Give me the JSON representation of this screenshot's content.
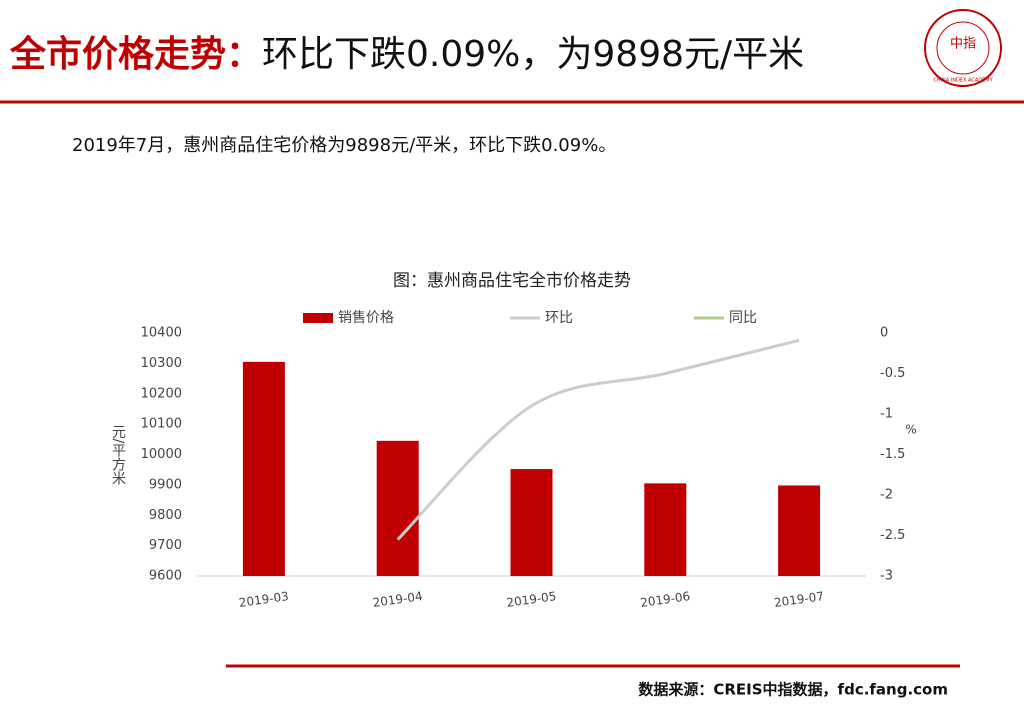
{
  "header": {
    "title_red": "全市价格走势：",
    "title_black": "环比下跌0.09%，为9898元/平米"
  },
  "logo": {
    "text": "中指",
    "caption": "CHINA INDEX ACADEMY"
  },
  "summary": "2019年7月，惠州商品住宅价格为9898元/平米，环比下跌0.09%。",
  "source": "数据来源：CREIS中指数据，fdc.fang.com",
  "chart_data": {
    "type": "bar-line",
    "title": "图：惠州商品住宅全市价格走势",
    "y_label": "元/平方米",
    "y2_label": "%",
    "categories": [
      "2019-03",
      "2019-04",
      "2019-05",
      "2019-06",
      "2019-07"
    ],
    "series": [
      {
        "name": "销售价格",
        "color": "#c00000",
        "type": "bar",
        "values": [
          10305,
          10045,
          9952,
          9905,
          9898
        ]
      },
      {
        "name": "环比",
        "color": "#c9cdcc",
        "type": "line",
        "axis": "y2",
        "values": [
          null,
          -2.55,
          -0.9,
          -0.5,
          -0.09
        ]
      },
      {
        "name": "同比",
        "color": "#b5cc8e",
        "type": "line",
        "axis": "y2",
        "values": [
          null,
          null,
          null,
          null,
          null
        ]
      }
    ],
    "ylim": [
      9600,
      10400
    ],
    "yticks": [
      9600,
      9700,
      9800,
      9900,
      10000,
      10100,
      10200,
      10300,
      10400
    ],
    "y2lim": [
      -3,
      0
    ],
    "y2ticks": [
      -3,
      -2.5,
      -2,
      -1.5,
      -1,
      -0.5,
      0
    ]
  }
}
